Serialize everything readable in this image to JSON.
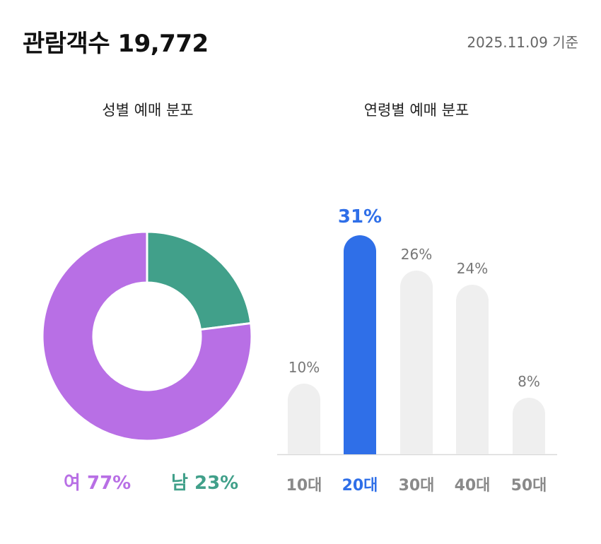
{
  "header": {
    "title": "관람객수 19,772",
    "date": "2025.11.09 기준"
  },
  "colors": {
    "female": "#b86fe5",
    "male": "#41a08a",
    "highlight": "#2f6fe8",
    "bar_default": "#efefef",
    "label_default": "#8a8a8a"
  },
  "chart_data": [
    {
      "type": "pie",
      "variant": "donut",
      "title": "성별 예매 분포",
      "slices": [
        {
          "label": "여",
          "value": 77,
          "display": "여 77%",
          "color": "#b86fe5"
        },
        {
          "label": "남",
          "value": 23,
          "display": "남 23%",
          "color": "#41a08a"
        }
      ]
    },
    {
      "type": "bar",
      "title": "연령별 예매 분포",
      "categories": [
        "10대",
        "20대",
        "30대",
        "40대",
        "50대"
      ],
      "values": [
        10,
        31,
        26,
        24,
        8
      ],
      "value_labels": [
        "10%",
        "31%",
        "26%",
        "24%",
        "8%"
      ],
      "highlight_index": 1,
      "ylim": [
        0,
        31
      ]
    }
  ]
}
